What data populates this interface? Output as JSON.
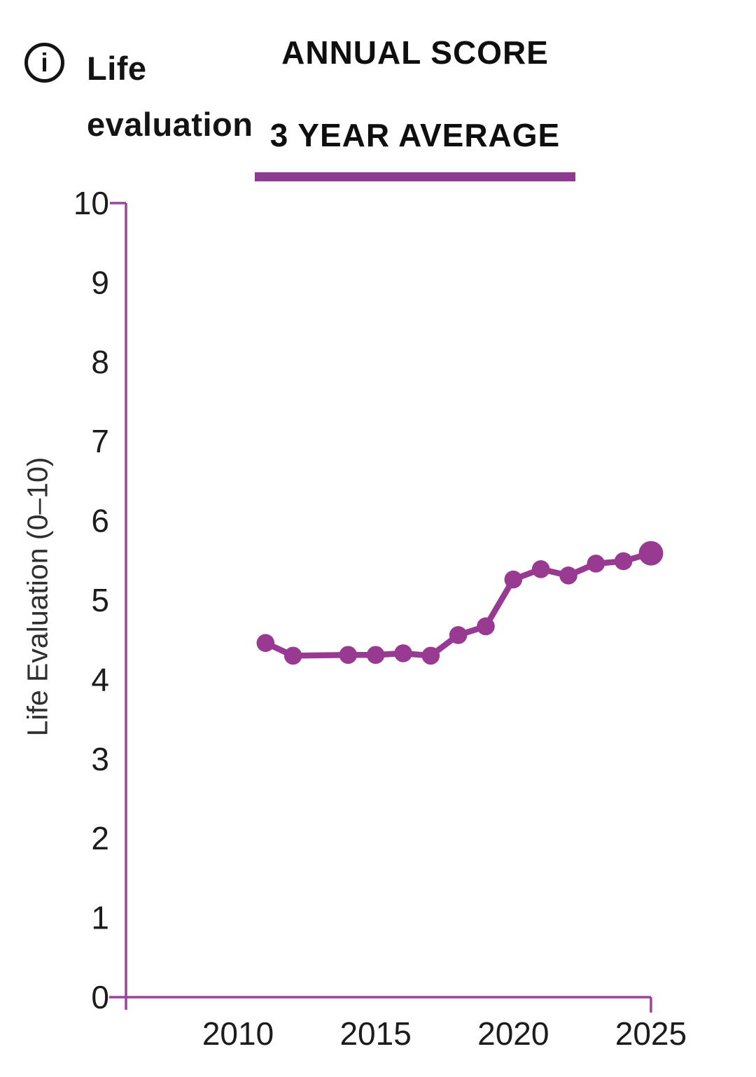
{
  "header": {
    "info_icon_glyph": "i",
    "title_lines": [
      "Life",
      "evaluation"
    ],
    "tabs": [
      {
        "label": "ANNUAL SCORE",
        "selected": false
      },
      {
        "label": "3 YEAR AVERAGE",
        "selected": true
      }
    ]
  },
  "colors": {
    "accent_purple": "#993A92",
    "axis_purple": "#9C449C",
    "tab_underline_purple": "#8E3A90",
    "text_dark": "#141414",
    "tick_label": "#1c1c1c"
  },
  "chart_data": {
    "type": "line",
    "title": "",
    "xlabel": "",
    "ylabel": "Life Evaluation (0–10)",
    "xlim": [
      2005.5,
      2025
    ],
    "ylim": [
      0,
      10
    ],
    "xticks": [
      2010,
      2015,
      2020,
      2025
    ],
    "yticks": [
      0,
      1,
      2,
      3,
      4,
      5,
      6,
      7,
      8,
      9,
      10
    ],
    "grid": false,
    "legend": "none",
    "series": [
      {
        "name": "3 YEAR AVERAGE",
        "color": "#993A92",
        "x": [
          2011,
          2012,
          2014,
          2015,
          2016,
          2017,
          2018,
          2019,
          2020,
          2021,
          2022,
          2023,
          2024,
          2025
        ],
        "y": [
          4.46,
          4.3,
          4.31,
          4.31,
          4.33,
          4.3,
          4.56,
          4.67,
          5.26,
          5.39,
          5.31,
          5.46,
          5.49,
          5.59
        ],
        "missing_years": [
          2013
        ],
        "last_point_emphasized": true
      }
    ]
  }
}
